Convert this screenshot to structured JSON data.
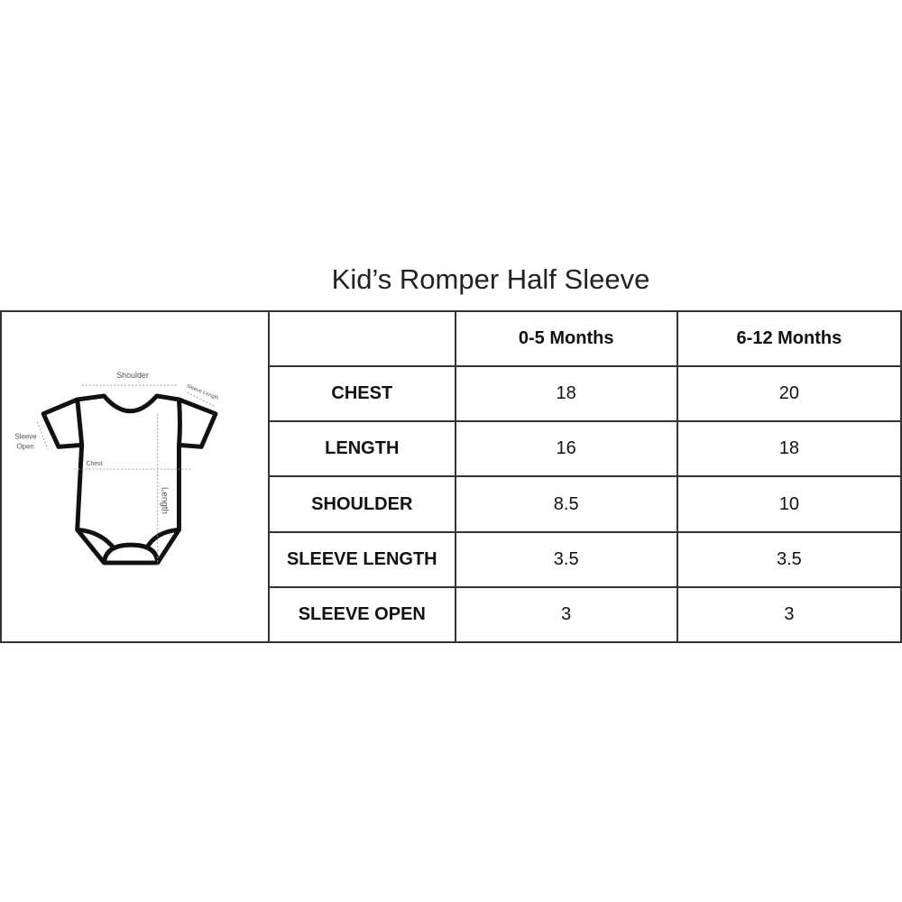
{
  "title": "Kid’s Romper Half Sleeve",
  "columns": [
    "",
    "0-5 Months",
    "6-12 Months"
  ],
  "rows": [
    {
      "label": "CHEST",
      "values": [
        "18",
        "20"
      ]
    },
    {
      "label": "LENGTH",
      "values": [
        "16",
        "18"
      ]
    },
    {
      "label": "SHOULDER",
      "values": [
        "8.5",
        "10"
      ]
    },
    {
      "label": "SLEEVE LENGTH",
      "values": [
        "3.5",
        "3.5"
      ]
    },
    {
      "label": "SLEEVE OPEN",
      "values": [
        "3",
        "3"
      ]
    }
  ],
  "diagram": {
    "shoulder": "Shoulder",
    "sleeve_length": "Sleeve Length",
    "sleeve_open_1": "Sleeve",
    "sleeve_open_2": "Open",
    "chest": "Chest",
    "length": "Length"
  }
}
